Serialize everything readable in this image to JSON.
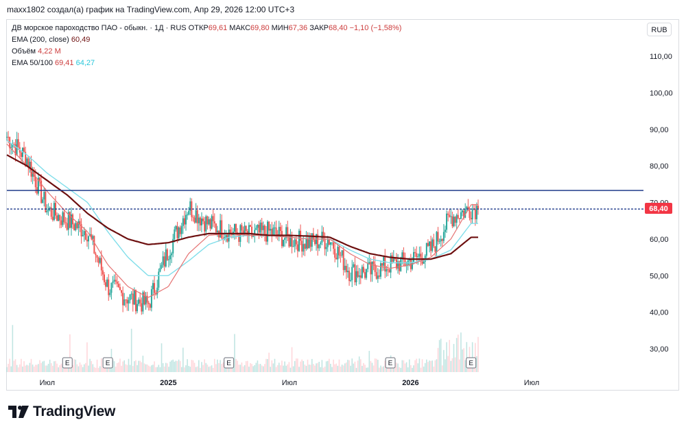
{
  "header": {
    "attribution": "maxx1802 создал(а) график на TradingView.com, Апр 29, 2026 12:00 UTC+3"
  },
  "legend": {
    "symbol": "ДВ морское пароходство ПАО - обыкн. · 1Д · RUS",
    "open_label": "ОТКР",
    "open": "69,61",
    "high_label": "МАКС",
    "high": "69,80",
    "low_label": "МИН",
    "low": "67,36",
    "close_label": "ЗАКР",
    "close": "68,40",
    "change": "−1,10 (−1,58%)",
    "ema200_label": "EMA (200, close)",
    "ema200_value": "60,49",
    "volume_label": "Объём",
    "volume_value": "4,22 M",
    "ema50_100_label": "EMA 50/100",
    "ema50_value": "69,41",
    "ema100_value": "64,27"
  },
  "currency_button": "RUB",
  "colors": {
    "up": "#26a69a",
    "down": "#ef5350",
    "ema50": "#e57373",
    "ema100": "#80deea",
    "ema200": "#6d0f0f",
    "hline": "#1e3a8a",
    "price_label": "#f23645"
  },
  "chart_data": {
    "type": "candlestick",
    "title": "ДВ морское пароходство ПАО - обыкн. · 1Д · RUS",
    "ylim": [
      24,
      116
    ],
    "y_ticks": [
      "110,00",
      "100,00",
      "90,00",
      "80,00",
      "70,00",
      "60,00",
      "50,00",
      "40,00",
      "30,00"
    ],
    "y_tick_values": [
      110,
      100,
      90,
      80,
      70,
      60,
      50,
      40,
      30
    ],
    "x_ticks": [
      "Июл",
      "2025",
      "Июл",
      "2026",
      "Июл"
    ],
    "x_tick_dates": [
      "2024-07",
      "2025-01",
      "2025-07",
      "2026-01",
      "2026-07"
    ],
    "last_price": 68.4,
    "last_price_label": "68,40",
    "horizontal_levels": [
      73.3,
      68.2
    ],
    "earnings_markers": [
      "E",
      "E",
      "E",
      "E",
      "E"
    ],
    "earnings_dates": [
      "2024-08",
      "2024-10",
      "2025-04",
      "2025-12",
      "2026-04"
    ],
    "price_keypoints": {
      "dates": [
        "2024-05",
        "2024-06",
        "2024-07",
        "2024-08",
        "2024-09",
        "2024-10",
        "2024-11",
        "2024-12",
        "2025-01",
        "2025-02",
        "2025-03",
        "2025-04",
        "2025-05",
        "2025-06",
        "2025-07",
        "2025-08",
        "2025-09",
        "2025-10",
        "2025-11",
        "2025-12",
        "2026-01",
        "2026-02",
        "2026-03",
        "2026-04"
      ],
      "close": [
        88,
        82,
        68,
        65,
        62,
        47,
        44,
        42,
        57,
        69,
        64,
        62,
        61,
        62,
        60,
        59,
        60,
        51,
        51,
        53,
        54,
        57,
        66,
        68.4
      ]
    },
    "ema200_keypoints": [
      83,
      80,
      76,
      72,
      67,
      63,
      60,
      58.5,
      59,
      60.5,
      61.5,
      61.5,
      61.5,
      61,
      61,
      60.8,
      60.5,
      58,
      56,
      55,
      54.5,
      54.5,
      56,
      60.49
    ],
    "ema50_keypoints": [
      86,
      80,
      73,
      67,
      62,
      53,
      47,
      44,
      47,
      56,
      61,
      61.5,
      61,
      61,
      60.5,
      60,
      60,
      56,
      53,
      52,
      53,
      55,
      60,
      69.41
    ],
    "ema100_keypoints": [
      87,
      83,
      78,
      74,
      70,
      62,
      55,
      50,
      50,
      54,
      58.5,
      60.5,
      61,
      61,
      60.5,
      60,
      60,
      57,
      54.5,
      53.5,
      53.5,
      54.5,
      57,
      64.27
    ]
  },
  "brand": {
    "name": "TradingView"
  }
}
